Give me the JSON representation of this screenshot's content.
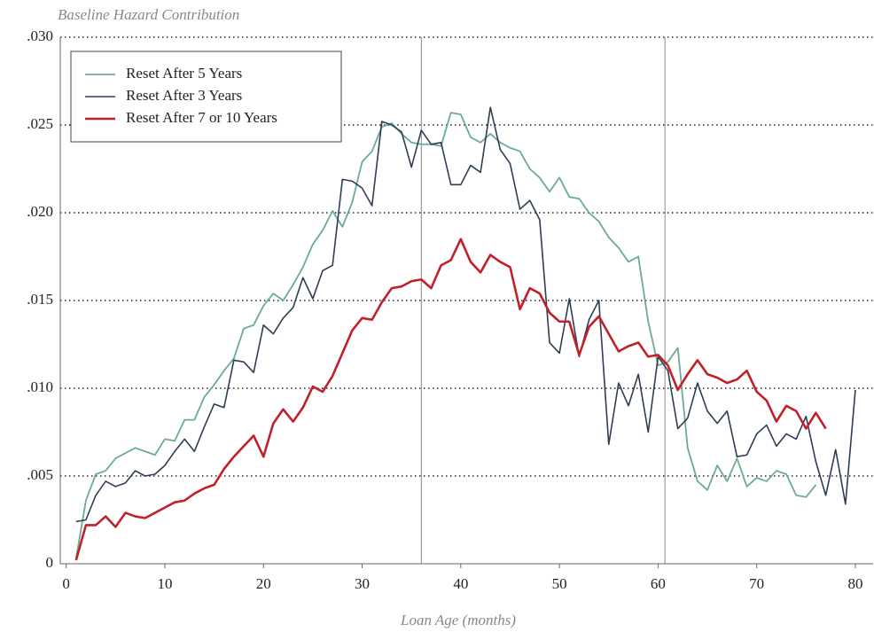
{
  "chart_data": {
    "type": "line",
    "title": "Baseline Hazard Contribution",
    "x_label": "Loan Age (months)",
    "x": [
      1,
      2,
      3,
      4,
      5,
      6,
      7,
      8,
      9,
      10,
      11,
      12,
      13,
      14,
      15,
      16,
      17,
      18,
      19,
      20,
      21,
      22,
      23,
      24,
      25,
      26,
      27,
      28,
      29,
      30,
      31,
      32,
      33,
      34,
      35,
      36,
      37,
      38,
      39,
      40,
      41,
      42,
      43,
      44,
      45,
      46,
      47,
      48,
      49,
      50,
      51,
      52,
      53,
      54,
      55,
      56,
      57,
      58,
      59,
      60,
      61,
      62,
      63,
      64,
      65,
      66,
      67,
      68,
      69,
      70,
      71,
      72,
      73,
      74,
      75,
      76,
      77,
      78,
      79,
      80
    ],
    "series": [
      {
        "name": "Reset After 5 Years",
        "color": "#6aab95",
        "width": 1.8,
        "values": [
          0.0003,
          0.0036,
          0.0051,
          0.0053,
          0.006,
          0.0063,
          0.0066,
          0.0064,
          0.0062,
          0.0071,
          0.007,
          0.0082,
          0.0082,
          0.0095,
          0.0102,
          0.011,
          0.0117,
          0.0134,
          0.0136,
          0.0147,
          0.0154,
          0.015,
          0.0159,
          0.0169,
          0.0182,
          0.019,
          0.0201,
          0.0192,
          0.0206,
          0.0229,
          0.0235,
          0.0249,
          0.0251,
          0.0245,
          0.024,
          0.0239,
          0.0239,
          0.0238,
          0.0257,
          0.0256,
          0.0243,
          0.024,
          0.0245,
          0.024,
          0.0237,
          0.0235,
          0.0225,
          0.022,
          0.0212,
          0.022,
          0.0209,
          0.0208,
          0.02,
          0.0195,
          0.0186,
          0.018,
          0.0172,
          0.0175,
          0.0138,
          0.0113,
          0.0115,
          0.0123,
          0.0066,
          0.0047,
          0.0042,
          0.0056,
          0.0047,
          0.006,
          0.0044,
          0.0049,
          0.0047,
          0.0053,
          0.0051,
          0.0039,
          0.0038,
          0.0045,
          null,
          null,
          null,
          null
        ]
      },
      {
        "name": "Reset After 3 Years",
        "color": "#2e3d56",
        "width": 1.6,
        "values": [
          0.0024,
          0.0025,
          0.0039,
          0.0047,
          0.0044,
          0.0046,
          0.0053,
          0.005,
          0.0051,
          0.0056,
          0.0064,
          0.0071,
          0.0064,
          0.0078,
          0.0091,
          0.0089,
          0.0116,
          0.0115,
          0.0109,
          0.0136,
          0.0131,
          0.014,
          0.0146,
          0.0163,
          0.0151,
          0.0167,
          0.017,
          0.0219,
          0.0218,
          0.0214,
          0.0204,
          0.0252,
          0.025,
          0.0246,
          0.0226,
          0.0247,
          0.0239,
          0.024,
          0.0216,
          0.0216,
          0.0227,
          0.0223,
          0.026,
          0.0236,
          0.0228,
          0.0202,
          0.0207,
          0.0196,
          0.0126,
          0.012,
          0.0151,
          0.0118,
          0.0139,
          0.015,
          0.0068,
          0.0103,
          0.009,
          0.0108,
          0.0075,
          0.0118,
          0.011,
          0.0077,
          0.0083,
          0.0103,
          0.0087,
          0.008,
          0.0087,
          0.0061,
          0.0062,
          0.0074,
          0.0079,
          0.0067,
          0.0074,
          0.0071,
          0.0084,
          0.0058,
          0.0039,
          0.0065,
          0.0034,
          0.0099
        ]
      },
      {
        "name": "Reset After 7 or 10 Years",
        "color": "#c0202a",
        "width": 2.6,
        "values": [
          0.0002,
          0.0022,
          0.0022,
          0.0027,
          0.0021,
          0.0029,
          0.0027,
          0.0026,
          0.0029,
          0.0032,
          0.0035,
          0.0036,
          0.004,
          0.0043,
          0.0045,
          0.0054,
          0.0061,
          0.0067,
          0.0073,
          0.0061,
          0.008,
          0.0088,
          0.0081,
          0.0089,
          0.0101,
          0.0098,
          0.0107,
          0.012,
          0.0133,
          0.014,
          0.0139,
          0.0149,
          0.0157,
          0.0158,
          0.0161,
          0.0162,
          0.0157,
          0.017,
          0.0173,
          0.0185,
          0.0172,
          0.0166,
          0.0176,
          0.0172,
          0.0169,
          0.0145,
          0.0157,
          0.0154,
          0.0143,
          0.0138,
          0.0138,
          0.0119,
          0.0135,
          0.0141,
          0.0131,
          0.0121,
          0.0124,
          0.0126,
          0.0118,
          0.0119,
          0.0113,
          0.0099,
          0.0108,
          0.0116,
          0.0108,
          0.0106,
          0.0103,
          0.0105,
          0.011,
          0.0098,
          0.0093,
          0.0081,
          0.009,
          0.0087,
          0.0077,
          0.0086,
          0.0077,
          null,
          null,
          null
        ]
      }
    ],
    "xlim": [
      -0.6,
      81.8
    ],
    "xticks": [
      0,
      10,
      20,
      30,
      40,
      50,
      60,
      70,
      80
    ],
    "ylim": [
      0,
      0.03
    ],
    "yticks": [
      0,
      {
        "value": 0.005,
        "label": ".005"
      },
      {
        "value": 0.01,
        "label": ".010"
      },
      {
        "value": 0.015,
        "label": ".015"
      },
      {
        "value": 0.02,
        "label": ".020"
      },
      {
        "value": 0.025,
        "label": ".025"
      },
      {
        "value": 0.03,
        "label": ".030"
      }
    ],
    "vlines": [
      36,
      60.7
    ],
    "grid": true,
    "legend": "upper-left"
  }
}
